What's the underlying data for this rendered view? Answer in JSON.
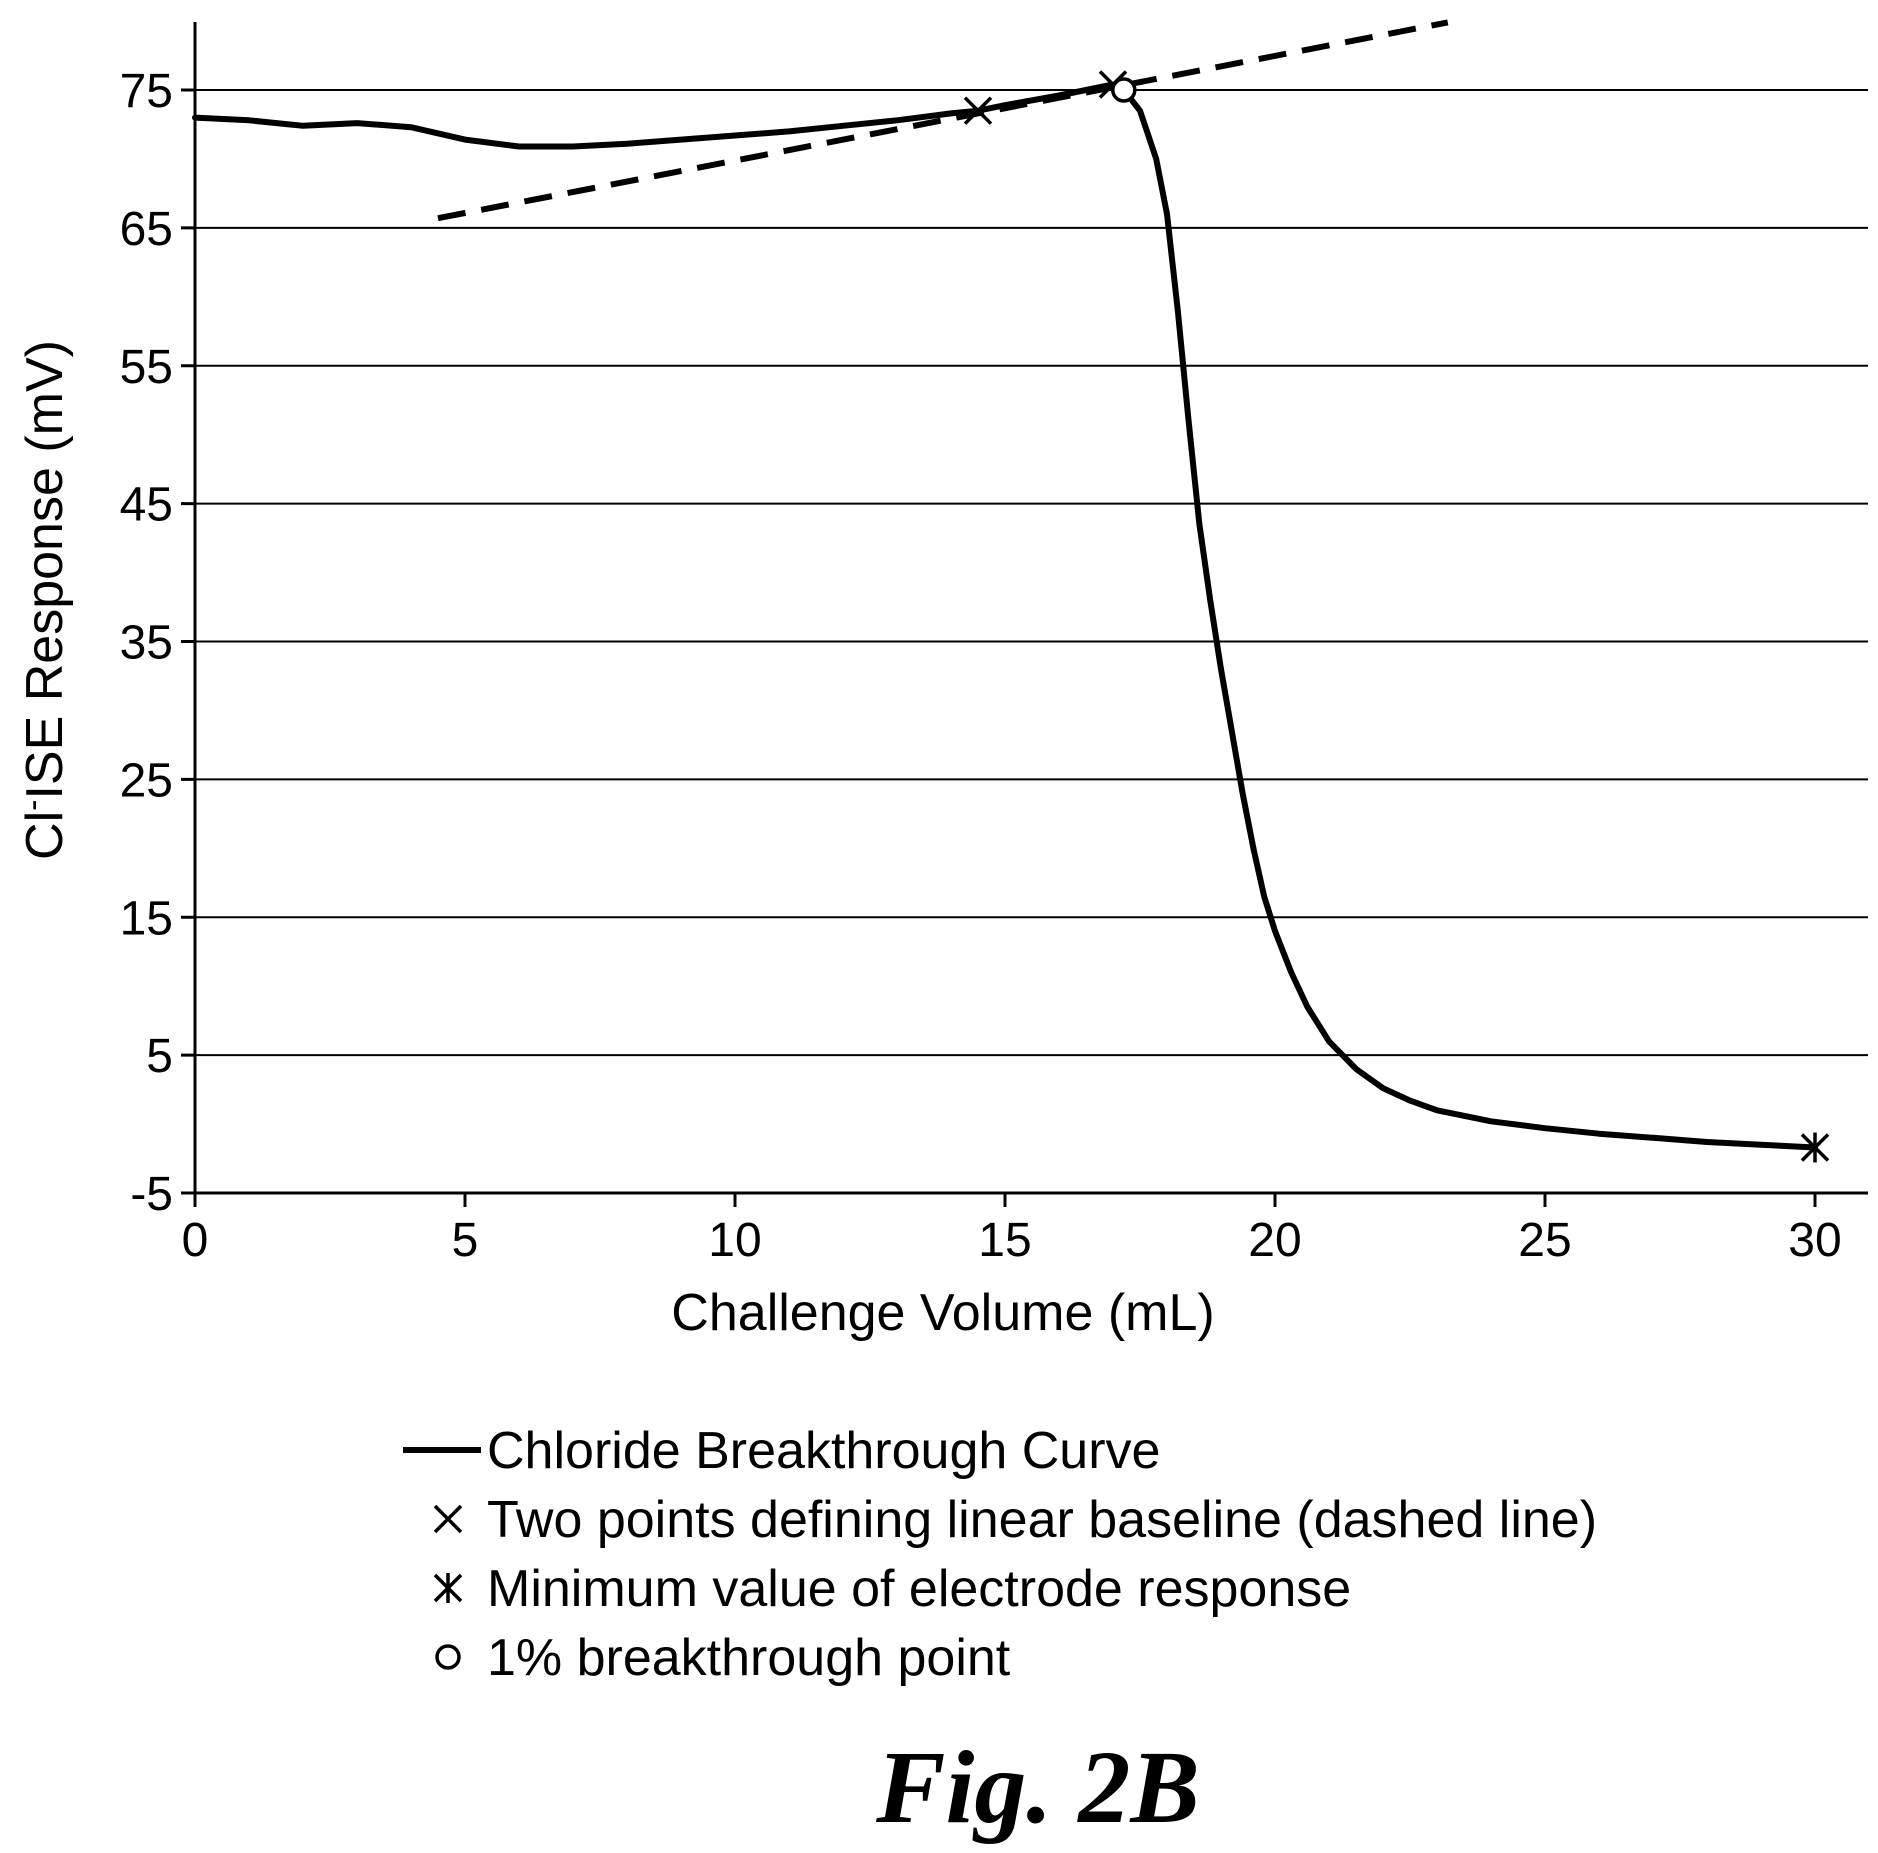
{
  "chart_data": {
    "type": "line",
    "xlabel": "Challenge Volume (mL)",
    "ylabel_prefix": "Cl",
    "ylabel_superscript": "-",
    "ylabel_suffix": "ISE Response (mV)",
    "xlim": [
      0,
      30
    ],
    "ylim": [
      -5,
      80
    ],
    "x_ticks": [
      0,
      5,
      10,
      15,
      20,
      25,
      30
    ],
    "y_ticks": [
      -5,
      5,
      15,
      25,
      35,
      45,
      55,
      65,
      75
    ],
    "x_tick_labels": [
      "0",
      "5",
      "10",
      "15",
      "20",
      "25",
      "30"
    ],
    "y_tick_labels": [
      "-5",
      "5",
      "15",
      "25",
      "35",
      "45",
      "55",
      "65",
      "75"
    ],
    "grid": "horizontal",
    "series": [
      {
        "name": "Chloride Breakthrough Curve",
        "style": "solid",
        "x": [
          0,
          1,
          2,
          3,
          4,
          5,
          6,
          7,
          8,
          9,
          10,
          11,
          12,
          13,
          14,
          14.5,
          15,
          16,
          17,
          17.2,
          17.5,
          17.8,
          18,
          18.2,
          18.4,
          18.6,
          18.8,
          19,
          19.2,
          19.4,
          19.6,
          19.8,
          20,
          20.3,
          20.6,
          21,
          21.5,
          22,
          22.5,
          23,
          24,
          25,
          26,
          27,
          28,
          29,
          30
        ],
        "y": [
          73,
          72.8,
          72.4,
          72.6,
          72.3,
          71.4,
          70.9,
          70.9,
          71.1,
          71.4,
          71.7,
          72,
          72.4,
          72.8,
          73.3,
          73.5,
          73.9,
          74.6,
          75.4,
          75,
          73.5,
          70,
          66,
          59,
          51,
          43.5,
          38,
          33,
          28.5,
          24,
          20,
          16.5,
          14,
          11,
          8.5,
          6,
          4,
          2.6,
          1.7,
          1,
          0.2,
          -0.3,
          -0.7,
          -1,
          -1.3,
          -1.5,
          -1.7
        ]
      },
      {
        "name": "",
        "style": "dashed",
        "x": [
          4.5,
          23.2
        ],
        "y": [
          65.7,
          79.9
        ]
      }
    ],
    "markers": [
      {
        "type": "x",
        "x": 14.5,
        "y": 73.5
      },
      {
        "type": "x",
        "x": 17,
        "y": 75.4
      },
      {
        "type": "asterisk",
        "x": 30,
        "y": -1.7
      },
      {
        "type": "circle",
        "x": 17.2,
        "y": 75
      }
    ],
    "legend": {
      "placement": "bottom",
      "entries": [
        {
          "symbol": "line",
          "label": "Chloride Breakthrough Curve"
        },
        {
          "symbol": "x",
          "label": "Two points defining linear baseline (dashed line)"
        },
        {
          "symbol": "asterisk",
          "label": "Minimum value of electrode response"
        },
        {
          "symbol": "circle",
          "label": "1% breakthrough point"
        }
      ]
    }
  },
  "caption": "Fig. 2B"
}
